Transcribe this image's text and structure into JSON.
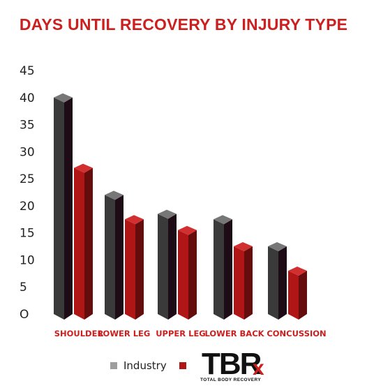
{
  "chart_data": {
    "type": "bar",
    "title": "DAYS UNTIL RECOVERY BY INJURY TYPE",
    "categories": [
      "SHOULDER",
      "LOWER LEG",
      "UPPER LEG",
      "LOWER BACK",
      "CONCUSSION"
    ],
    "series": [
      {
        "name": "Industry",
        "values": [
          40,
          22,
          18.5,
          17.5,
          12.5
        ]
      },
      {
        "name": "",
        "values": [
          27,
          17.5,
          15.5,
          12.5,
          8
        ]
      }
    ],
    "ylim": [
      0,
      45
    ],
    "yticks": [
      0,
      5,
      10,
      15,
      20,
      25,
      30,
      35,
      40,
      45
    ],
    "ytick_labels": [
      "O",
      "5",
      "10",
      "15",
      "20",
      "25",
      "30",
      "35",
      "40",
      "45"
    ],
    "xlabel": "",
    "ylabel": "",
    "grid": false,
    "legend_position": "bottom",
    "colors": {
      "title": "#cc1f1f",
      "category_label": "#cc1f1f",
      "industry_front": "#3a3a3a",
      "industry_side": "#1d0b16",
      "industry_top": "#777777",
      "tbr_front": "#b01616",
      "tbr_side": "#650c0c",
      "tbr_top": "#d23030",
      "legend_industry": "#9e9e9e",
      "legend_tbr": "#b01616"
    }
  },
  "logo": {
    "mark": "TBRx",
    "caption": "TOTAL BODY RECOVERY"
  }
}
